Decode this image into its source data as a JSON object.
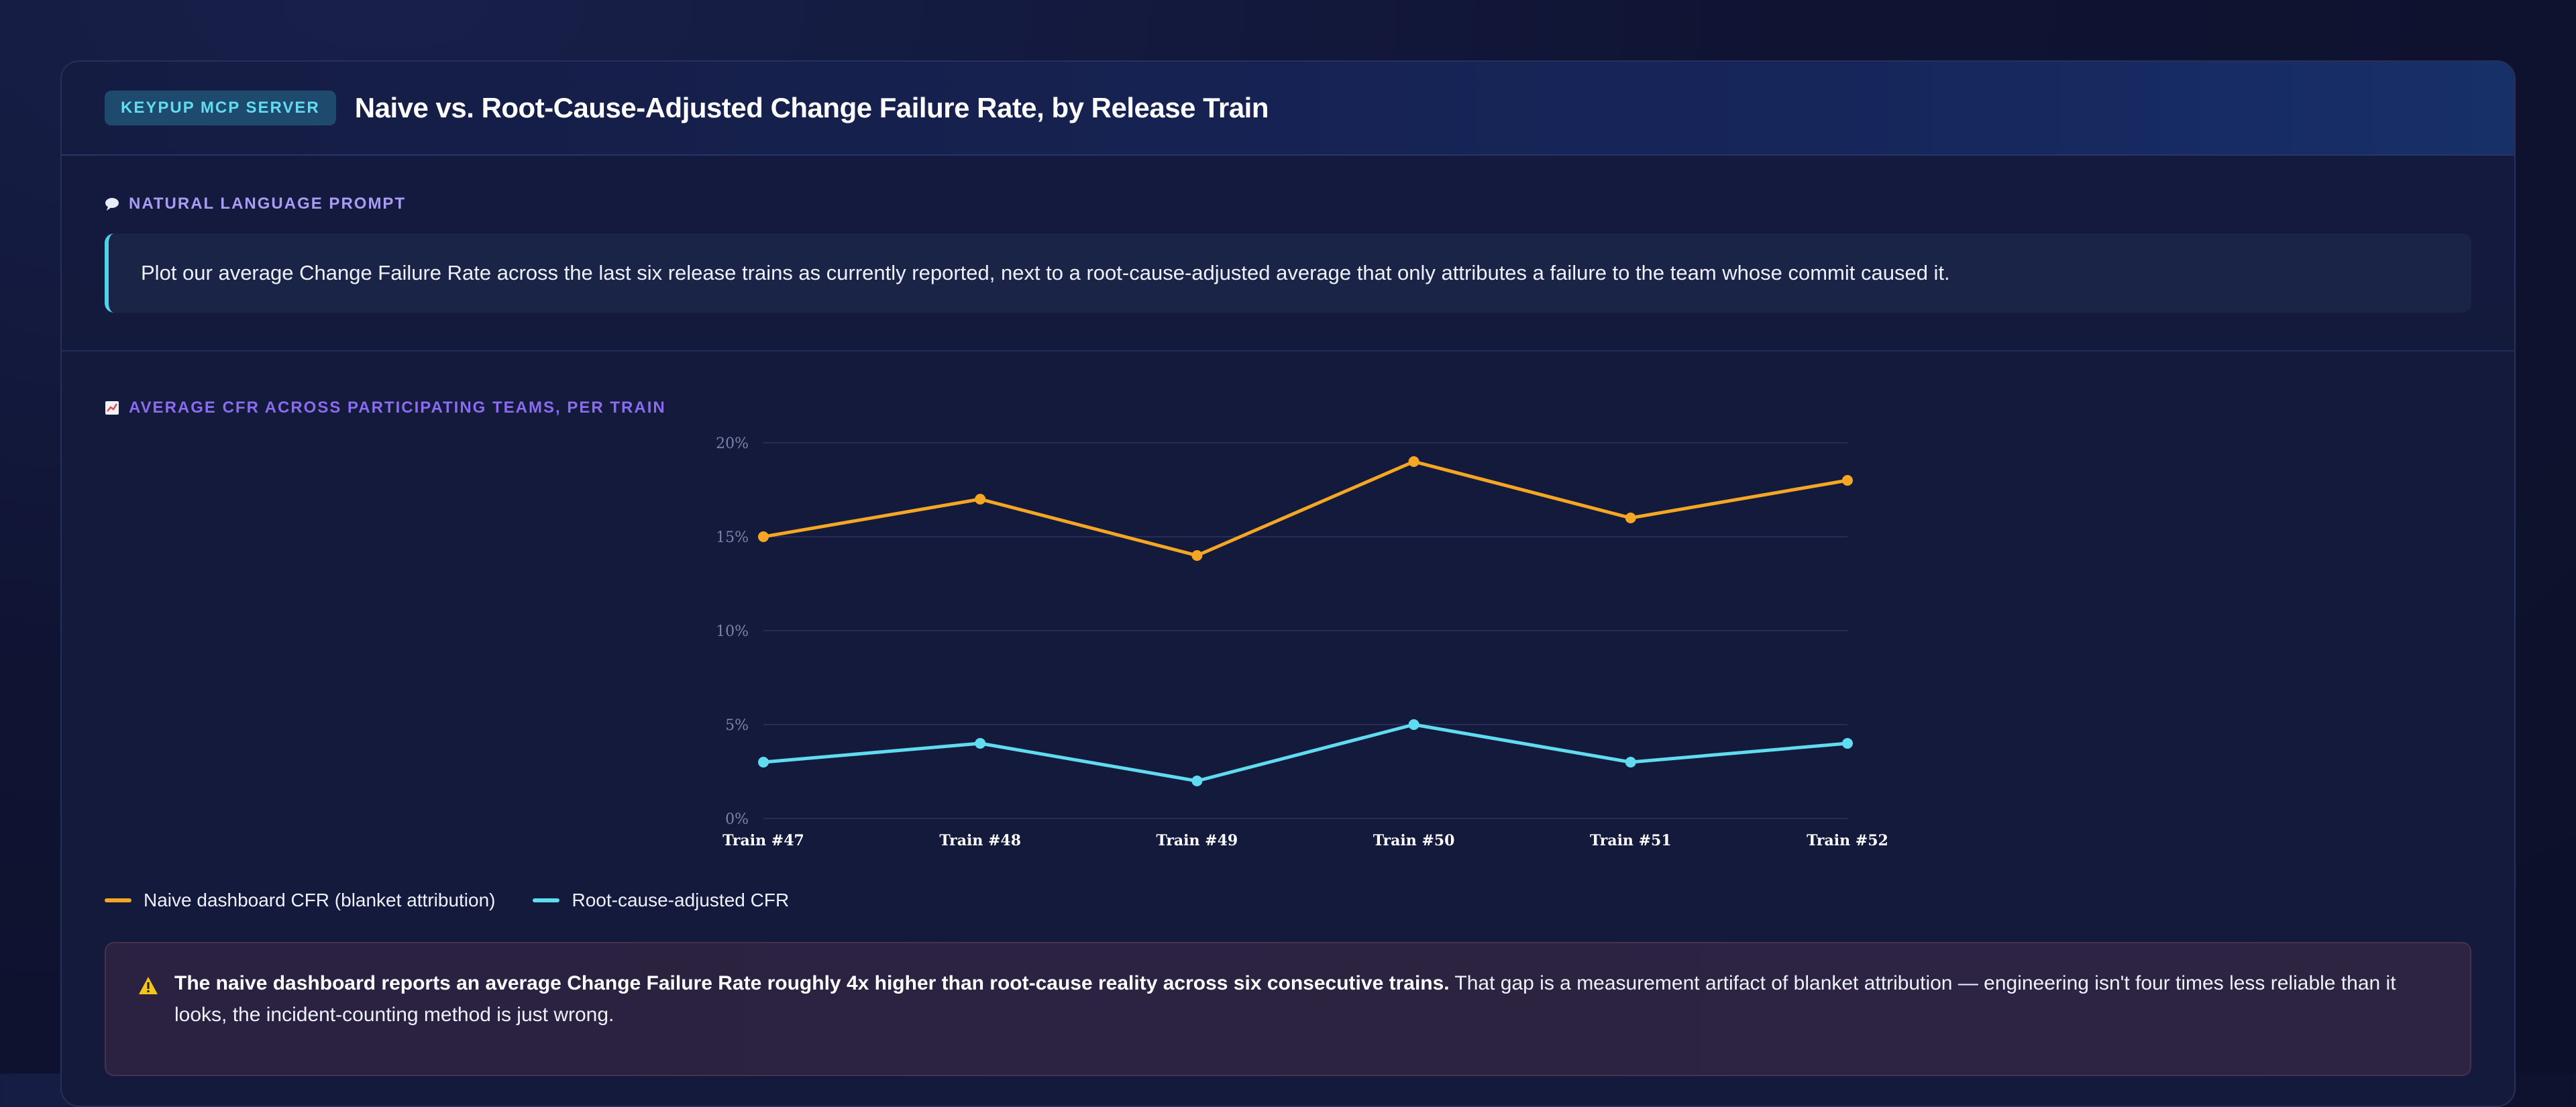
{
  "header": {
    "badge": "KEYPUP MCP SERVER",
    "title": "Naive vs. Root-Cause-Adjusted Change Failure Rate, by Release Train"
  },
  "prompt": {
    "label": "NATURAL LANGUAGE PROMPT",
    "icon": "speech-bubble-icon",
    "text": "Plot our average Change Failure Rate across the last six release trains as currently reported, next to a root-cause-adjusted average that only attributes a failure to the team whose commit caused it."
  },
  "chart_section": {
    "label": "AVERAGE CFR ACROSS PARTICIPATING TEAMS, PER TRAIN",
    "icon": "chart-icon"
  },
  "chart_data": {
    "type": "line",
    "categories": [
      "Train #47",
      "Train #48",
      "Train #49",
      "Train #50",
      "Train #51",
      "Train #52"
    ],
    "y_ticks": [
      "0%",
      "5%",
      "10%",
      "15%",
      "20%"
    ],
    "ylim": [
      0,
      20
    ],
    "grid": true,
    "series": [
      {
        "name": "Naive dashboard CFR (blanket attribution)",
        "color": "#f5a623",
        "values": [
          15,
          17,
          14,
          19,
          16,
          18
        ]
      },
      {
        "name": "Root-cause-adjusted CFR",
        "color": "#5fdcf0",
        "values": [
          3,
          4,
          2,
          5,
          3,
          4
        ]
      }
    ]
  },
  "alert": {
    "icon": "warning-icon",
    "bold": "The naive dashboard reports an average Change Failure Rate roughly 4x higher than root-cause reality across six consecutive trains.",
    "rest": " That gap is a measurement artifact of blanket attribution — engineering isn't four times less reliable than it looks, the incident-counting method is just wrong."
  }
}
